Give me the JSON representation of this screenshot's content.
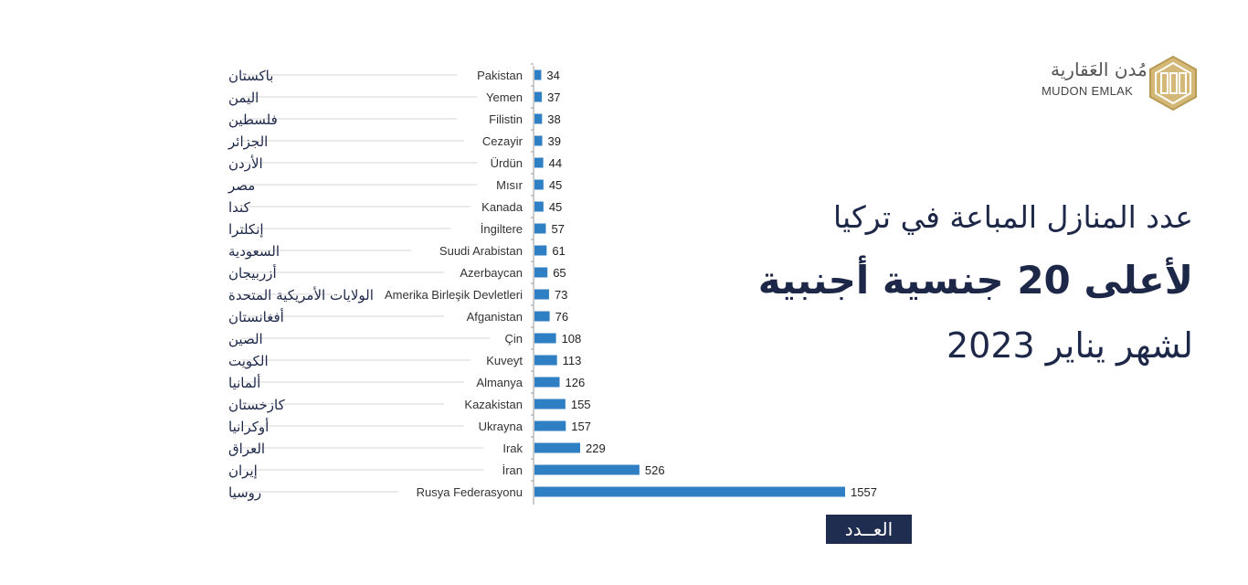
{
  "title": {
    "line1": "عدد المنازل المباعة في تركيا",
    "line2": "لأعلى 20 جنسية أجنبية",
    "line3": "لشهر يناير 2023"
  },
  "logo": {
    "arabic": "مُدن العَقارية",
    "english": "MUDON EMLAK"
  },
  "count_label": "العــدد",
  "chart_data": {
    "type": "bar",
    "orientation": "horizontal",
    "categories": [
      "Pakistan",
      "Yemen",
      "Filistin",
      "Cezayir",
      "Ürdün",
      "Mısır",
      "Kanada",
      "İngiltere",
      "Suudi Arabistan",
      "Azerbaycan",
      "Amerika Birleşik Devletleri",
      "Afganistan",
      "Çin",
      "Kuveyt",
      "Almanya",
      "Kazakistan",
      "Ukrayna",
      "Irak",
      "İran",
      "Rusya Federasyonu"
    ],
    "categories_ar": [
      "باكستان",
      "اليمن",
      "فلسطين",
      "الجزائر",
      "الأردن",
      "مصر",
      "كندا",
      "إنكلترا",
      "السعودية",
      "أزربيجان",
      "الولايات الأمريكية المتحدة",
      "أفغانستان",
      "الصين",
      "الكويت",
      "ألمانيا",
      "كازخستان",
      "أوكرانيا",
      "العراق",
      "إيران",
      "روسيا"
    ],
    "values": [
      34,
      37,
      38,
      39,
      44,
      45,
      45,
      57,
      61,
      65,
      73,
      76,
      108,
      113,
      126,
      155,
      157,
      229,
      526,
      1557
    ],
    "xlim": [
      0,
      1557
    ],
    "xlabel": "العــدد",
    "bar_color": "#2e7fc4",
    "grid": false
  }
}
